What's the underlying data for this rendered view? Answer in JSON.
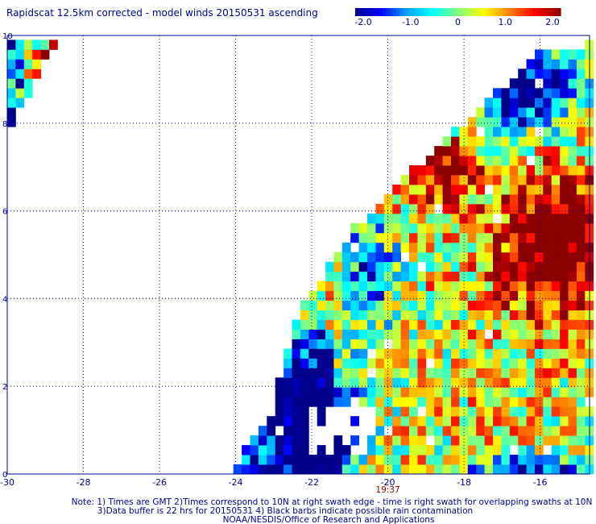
{
  "chart_data": {
    "type": "heatmap",
    "title": "Rapidscat 12.5km corrected - model winds 20150531 ascending",
    "xlabel": "",
    "ylabel": "",
    "xlim": [
      -30,
      -14.7
    ],
    "ylim": [
      0,
      10
    ],
    "x_ticks": [
      "-30",
      "-28",
      "-26",
      "-24",
      "-22",
      "-20",
      "-18",
      "-16"
    ],
    "y_ticks": [
      "0",
      "2",
      "4",
      "6",
      "8",
      "10"
    ],
    "grid": true,
    "colorbar": {
      "range": [
        -2.0,
        2.0
      ],
      "tick_labels": [
        "-2.0",
        "-1.0",
        "0",
        "1.0",
        "2.0"
      ],
      "colors": [
        "#00008b",
        "#0000ff",
        "#00a0ff",
        "#00ffff",
        "#80ff80",
        "#ffff00",
        "#ff8000",
        "#ff0000",
        "#8b0000"
      ]
    },
    "time_labels": [
      {
        "lon": -20,
        "text": "19:37"
      }
    ],
    "swath_polygon": [
      [
        -30,
        10
      ],
      [
        -28.6,
        10
      ],
      [
        -30,
        7.8
      ]
    ],
    "main_swath_polygon": [
      [
        -23.3,
        0
      ],
      [
        -14.7,
        0
      ],
      [
        -14.7,
        9.8
      ],
      [
        -16,
        9.6
      ],
      [
        -19.4,
        6.9
      ],
      [
        -21,
        5.5
      ],
      [
        -22.4,
        3.6
      ],
      [
        -22.8,
        2.5
      ],
      [
        -23,
        1.5
      ],
      [
        -24.2,
        0
      ]
    ],
    "notes": [
      "Note: 1) Times are GMT 2)Times correspond to 10N at right swath edge - time is right swath for overlapping swaths at 10N",
      "3)Data buffer is 22 hrs for 20150531 4) Black barbs indicate possible rain contamination",
      "NOAA/NESDIS/Office of Research and Applications"
    ]
  }
}
